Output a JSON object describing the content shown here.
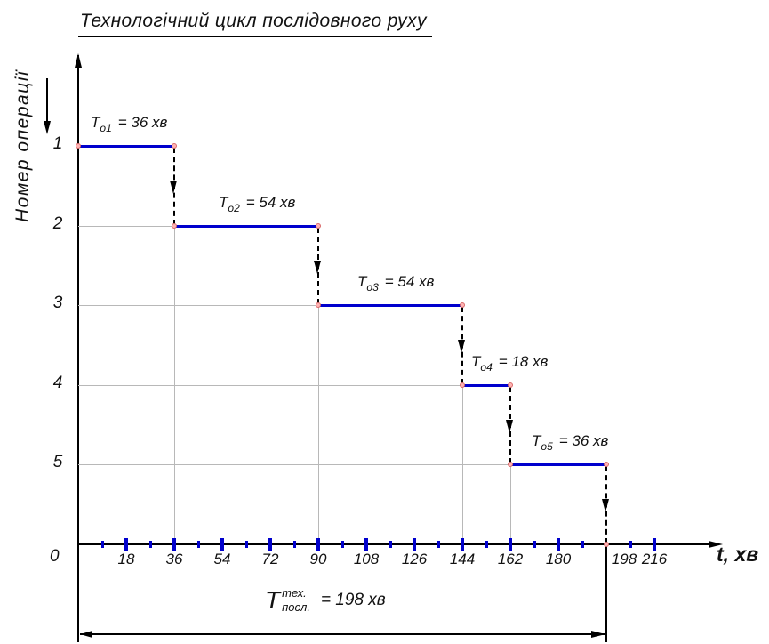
{
  "title": "Технологічний цикл послідовного руху",
  "y_axis": {
    "label": "Номер операції",
    "origin_label": "0"
  },
  "x_axis": {
    "label": "t, хв"
  },
  "total": {
    "base": "T",
    "sup": "тех.",
    "sub": "посл.",
    "value": "= 198 хв"
  },
  "chart_data": {
    "type": "step",
    "title": "Технологічний цикл послідовного руху",
    "xlabel": "t, хв",
    "ylabel": "Номер операції",
    "xlim": [
      0,
      234
    ],
    "x_tick_step": 18,
    "x_major_ticks": [
      18,
      36,
      54,
      72,
      90,
      108,
      126,
      144,
      162,
      180,
      198,
      216
    ],
    "y_categories": [
      1,
      2,
      3,
      4,
      5
    ],
    "operations": [
      {
        "index": 1,
        "label_base": "T",
        "label_sub": "о1",
        "label_value": "= 36 хв",
        "start": 0,
        "end": 36,
        "duration": 36
      },
      {
        "index": 2,
        "label_base": "T",
        "label_sub": "о2",
        "label_value": "= 54 хв",
        "start": 36,
        "end": 90,
        "duration": 54
      },
      {
        "index": 3,
        "label_base": "T",
        "label_sub": "о3",
        "label_value": "= 54 хв",
        "start": 90,
        "end": 144,
        "duration": 54
      },
      {
        "index": 4,
        "label_base": "T",
        "label_sub": "о4",
        "label_value": "= 18 хв",
        "start": 144,
        "end": 162,
        "duration": 18
      },
      {
        "index": 5,
        "label_base": "T",
        "label_sub": "о5",
        "label_value": "= 36 хв",
        "start": 162,
        "end": 198,
        "duration": 36
      }
    ],
    "total_duration_min": 198,
    "grid": false,
    "legend": null,
    "colors": {
      "segment": "#0000cd",
      "tick": "#0000cd",
      "marker_fill": "#ffb3b3",
      "marker_edge": "#d96a6a",
      "guide": "#b8b8b8",
      "line": "#000000"
    }
  }
}
